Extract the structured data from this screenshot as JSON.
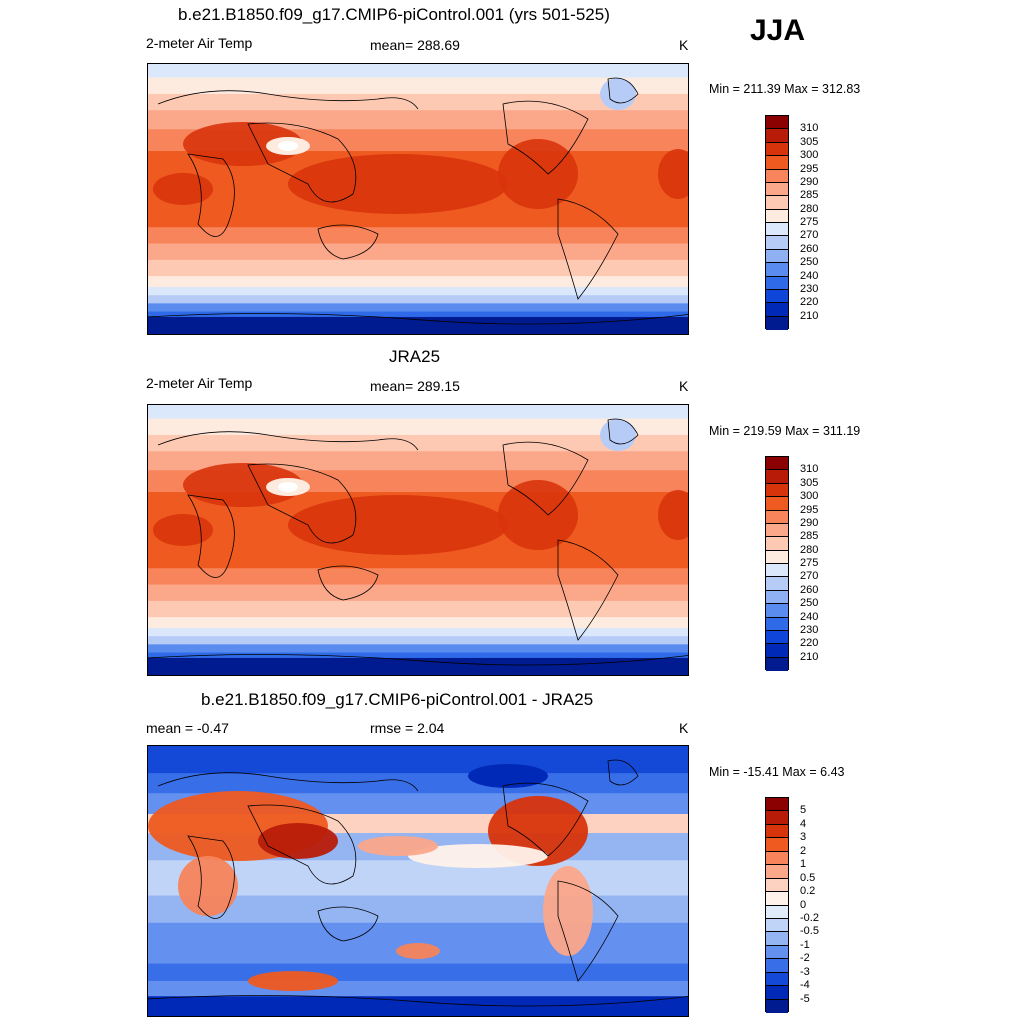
{
  "season": "JJA",
  "palette_abs": [
    "#8b0000",
    "#b81c08",
    "#d8340b",
    "#ee5a1f",
    "#f7845a",
    "#fba78a",
    "#fdc9b3",
    "#feebe0",
    "#dbe8fb",
    "#b6ccf7",
    "#8fb0f2",
    "#5a8cf0",
    "#2f6ae8",
    "#0f45d8",
    "#0029b8",
    "#001a8f"
  ],
  "palette_diff": [
    "#8b0000",
    "#b81c08",
    "#d8340b",
    "#ee5a1f",
    "#f7845a",
    "#fba78a",
    "#fdd2c0",
    "#fff2ea",
    "#e1ecfb",
    "#c0d4f7",
    "#94b4f2",
    "#6490ef",
    "#386fe8",
    "#1449d8",
    "#0029b8",
    "#001a8f"
  ],
  "panels": [
    {
      "title": "b.e21.B1850.f09_g17.CMIP6-piControl.001 (yrs 501-525)",
      "left_label": "2-meter Air Temp",
      "center_label": "mean= 288.69",
      "units": "K",
      "minmax": "Min = 211.39 Max = 312.83",
      "ticks": [
        "310",
        "305",
        "300",
        "295",
        "290",
        "285",
        "280",
        "275",
        "270",
        "260",
        "250",
        "240",
        "230",
        "220",
        "210"
      ],
      "palette": "abs"
    },
    {
      "title": "JRA25",
      "left_label": "2-meter Air Temp",
      "center_label": "mean= 289.15",
      "units": "K",
      "minmax": "Min = 219.59 Max = 311.19",
      "ticks": [
        "310",
        "305",
        "300",
        "295",
        "290",
        "285",
        "280",
        "275",
        "270",
        "260",
        "250",
        "240",
        "230",
        "220",
        "210"
      ],
      "palette": "abs"
    },
    {
      "title": "b.e21.B1850.f09_g17.CMIP6-piControl.001 - JRA25",
      "left_label": "mean =  -0.47",
      "center_label": "rmse =   2.04",
      "units": "K",
      "minmax": "Min = -15.41 Max =   6.43",
      "ticks": [
        "5",
        "4",
        "3",
        "2",
        "1",
        "0.5",
        "0.2",
        "0",
        "-0.2",
        "-0.5",
        "-1",
        "-2",
        "-3",
        "-4",
        "-5"
      ],
      "palette": "diff"
    }
  ]
}
